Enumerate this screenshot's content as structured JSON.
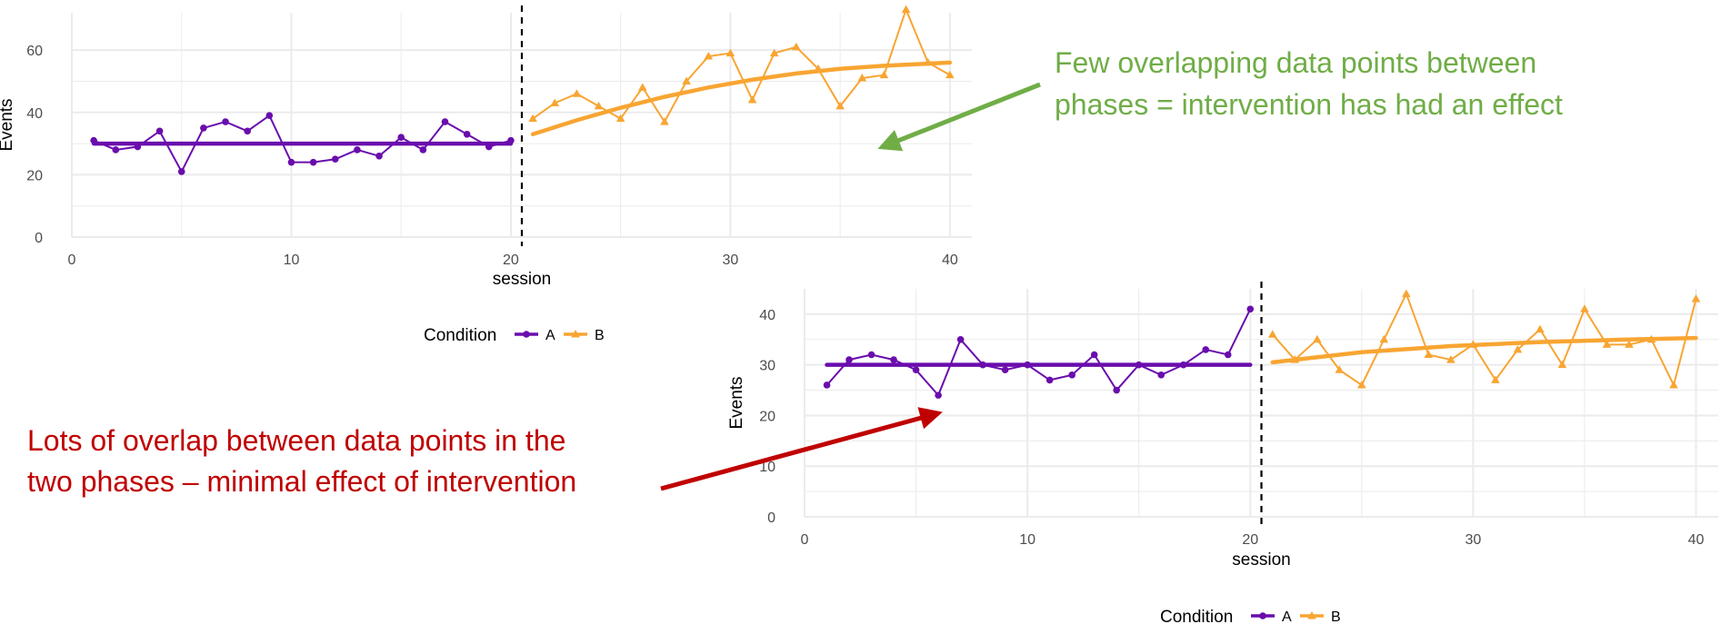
{
  "colors": {
    "A": "#6a0dad",
    "B": "#f8a532",
    "grid": "#ebebeb",
    "green_annotation": "#70ad47",
    "red_annotation": "#c00000"
  },
  "annotations": {
    "green_line1": "Few overlapping data points between",
    "green_line2": "phases = intervention has had an effect",
    "red_line1": "Lots of overlap between data points in the",
    "red_line2": "two phases – minimal effect of intervention"
  },
  "chart_data": [
    {
      "type": "line",
      "xlabel": "session",
      "ylabel": "Events",
      "xlim": [
        0,
        41
      ],
      "ylim": [
        0,
        72
      ],
      "xticks": [
        0,
        10,
        20,
        30,
        40
      ],
      "yticks": [
        0,
        20,
        40,
        60
      ],
      "phase_change_x": 20.5,
      "grid": true,
      "legend": {
        "title": "Condition",
        "position": "bottom",
        "labels": [
          "A",
          "B"
        ]
      },
      "series": [
        {
          "name": "A",
          "marker": "circle",
          "x": [
            1,
            2,
            3,
            4,
            5,
            6,
            7,
            8,
            9,
            10,
            11,
            12,
            13,
            14,
            15,
            16,
            17,
            18,
            19,
            20
          ],
          "y": [
            31,
            28,
            29,
            34,
            21,
            35,
            37,
            34,
            39,
            24,
            24,
            25,
            28,
            26,
            32,
            28,
            37,
            33,
            29,
            31
          ],
          "trend": {
            "x": [
              1,
              20
            ],
            "y": [
              30,
              30
            ]
          }
        },
        {
          "name": "B",
          "marker": "triangle",
          "x": [
            21,
            22,
            23,
            24,
            25,
            26,
            27,
            28,
            29,
            30,
            31,
            32,
            33,
            34,
            35,
            36,
            37,
            38,
            39,
            40
          ],
          "y": [
            38,
            43,
            46,
            42,
            38,
            48,
            37,
            50,
            58,
            59,
            44,
            59,
            61,
            54,
            42,
            51,
            52,
            73,
            56,
            52
          ],
          "trend": {
            "x": [
              21,
              23,
              25,
              27,
              29,
              31,
              33,
              35,
              37,
              40
            ],
            "y": [
              33,
              37.5,
              41.5,
              45,
              48,
              50.5,
              52.5,
              54,
              55,
              56
            ]
          }
        }
      ]
    },
    {
      "type": "line",
      "xlabel": "session",
      "ylabel": "Events",
      "xlim": [
        0,
        41
      ],
      "ylim": [
        0,
        45
      ],
      "xticks": [
        0,
        10,
        20,
        30,
        40
      ],
      "yticks": [
        0,
        10,
        20,
        30,
        40
      ],
      "phase_change_x": 20.5,
      "grid": true,
      "legend": {
        "title": "Condition",
        "position": "bottom",
        "labels": [
          "A",
          "B"
        ]
      },
      "series": [
        {
          "name": "A",
          "marker": "circle",
          "x": [
            1,
            2,
            3,
            4,
            5,
            6,
            7,
            8,
            9,
            10,
            11,
            12,
            13,
            14,
            15,
            16,
            17,
            18,
            19,
            20
          ],
          "y": [
            26,
            31,
            32,
            31,
            29,
            24,
            35,
            30,
            29,
            30,
            27,
            28,
            32,
            25,
            30,
            28,
            30,
            33,
            32,
            41
          ],
          "trend": {
            "x": [
              1,
              20
            ],
            "y": [
              30,
              30
            ]
          }
        },
        {
          "name": "B",
          "marker": "triangle",
          "x": [
            21,
            22,
            23,
            24,
            25,
            26,
            27,
            28,
            29,
            30,
            31,
            32,
            33,
            34,
            35,
            36,
            37,
            38,
            39,
            40
          ],
          "y": [
            36,
            31,
            35,
            29,
            26,
            35,
            44,
            32,
            31,
            34,
            27,
            33,
            37,
            30,
            41,
            34,
            34,
            35,
            26,
            43
          ],
          "trend": {
            "x": [
              21,
              25,
              29,
              33,
              37,
              40
            ],
            "y": [
              30.5,
              32.5,
              33.7,
              34.5,
              35,
              35.3
            ]
          }
        }
      ]
    }
  ]
}
